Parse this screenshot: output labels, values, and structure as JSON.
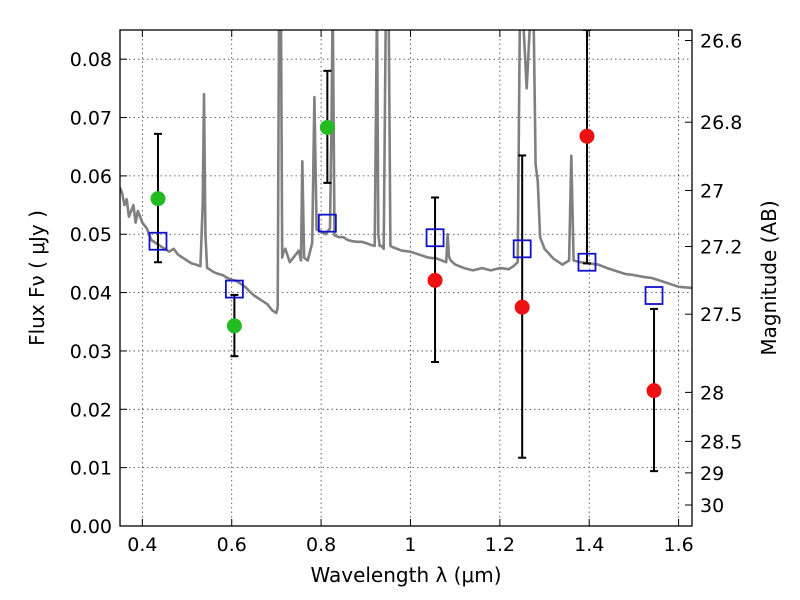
{
  "chart_data": {
    "type": "scatter",
    "title": "",
    "xlabel": "Wavelength  λ (μm)",
    "ylabel": "Flux  Fν  ( μJy )",
    "y2label": "Magnitude (AB)",
    "xlim": [
      0.35,
      1.63
    ],
    "ylim": [
      0.0,
      0.085
    ],
    "xticks": [
      0.4,
      0.6,
      0.8,
      1.0,
      1.2,
      1.4,
      1.6
    ],
    "xtick_labels": [
      "0.4",
      "0.6",
      "0.8",
      "1",
      "1.2",
      "1.4",
      "1.6"
    ],
    "yticks": [
      0.0,
      0.01,
      0.02,
      0.03,
      0.04,
      0.05,
      0.06,
      0.07,
      0.08
    ],
    "ytick_labels": [
      "0.00",
      "0.01",
      "0.02",
      "0.03",
      "0.04",
      "0.05",
      "0.06",
      "0.07",
      "0.08"
    ],
    "y2ticks": [
      {
        "label": "26.6",
        "flux": 0.0832
      },
      {
        "label": "26.8",
        "flux": 0.0692
      },
      {
        "label": "27",
        "flux": 0.0575
      },
      {
        "label": "27.2",
        "flux": 0.0479
      },
      {
        "label": "27.5",
        "flux": 0.0363
      },
      {
        "label": "28",
        "flux": 0.0229
      },
      {
        "label": "28.5",
        "flux": 0.0145
      },
      {
        "label": "29",
        "flux": 0.0091
      },
      {
        "label": "30",
        "flux": 0.0036
      }
    ],
    "grid": true,
    "series": [
      {
        "kind": "observed",
        "marker": "filled-circle",
        "points": [
          {
            "x": 0.435,
            "y": 0.0561,
            "color": "#22bb22",
            "err_low": 0.0452,
            "err_high": 0.0672
          },
          {
            "x": 0.606,
            "y": 0.0343,
            "color": "#22bb22",
            "err_low": 0.0291,
            "err_high": 0.0396
          },
          {
            "x": 0.814,
            "y": 0.0683,
            "color": "#22bb22",
            "err_low": 0.0588,
            "err_high": 0.078
          },
          {
            "x": 1.055,
            "y": 0.0421,
            "color": "#ee1111",
            "err_low": 0.0281,
            "err_high": 0.0563
          },
          {
            "x": 1.25,
            "y": 0.0375,
            "color": "#ee1111",
            "err_low": 0.0117,
            "err_high": 0.0635
          },
          {
            "x": 1.395,
            "y": 0.0668,
            "color": "#ee1111",
            "err_low": 0.045,
            "err_high": 0.085
          },
          {
            "x": 1.545,
            "y": 0.0232,
            "color": "#ee1111",
            "err_low": 0.0094,
            "err_high": 0.0372
          }
        ]
      },
      {
        "kind": "model-photometry",
        "marker": "open-square",
        "color": "#1111cc",
        "points": [
          {
            "x": 0.435,
            "y": 0.0488
          },
          {
            "x": 0.606,
            "y": 0.0406
          },
          {
            "x": 0.814,
            "y": 0.0519
          },
          {
            "x": 1.055,
            "y": 0.0494
          },
          {
            "x": 1.25,
            "y": 0.0475
          },
          {
            "x": 1.395,
            "y": 0.0452
          },
          {
            "x": 1.545,
            "y": 0.0395
          }
        ]
      },
      {
        "kind": "model-spectrum",
        "color": "#808080",
        "x": [
          0.35,
          0.355,
          0.36,
          0.365,
          0.37,
          0.375,
          0.38,
          0.385,
          0.39,
          0.4,
          0.41,
          0.42,
          0.43,
          0.44,
          0.45,
          0.46,
          0.47,
          0.48,
          0.49,
          0.5,
          0.51,
          0.52,
          0.53,
          0.535,
          0.538,
          0.541,
          0.545,
          0.55,
          0.56,
          0.57,
          0.58,
          0.59,
          0.6,
          0.61,
          0.62,
          0.63,
          0.64,
          0.65,
          0.66,
          0.67,
          0.68,
          0.69,
          0.7,
          0.703,
          0.706,
          0.71,
          0.713,
          0.716,
          0.72,
          0.73,
          0.74,
          0.75,
          0.755,
          0.758,
          0.762,
          0.77,
          0.78,
          0.785,
          0.79,
          0.8,
          0.81,
          0.82,
          0.823,
          0.826,
          0.83,
          0.84,
          0.85,
          0.86,
          0.87,
          0.88,
          0.89,
          0.9,
          0.91,
          0.92,
          0.925,
          0.928,
          0.931,
          0.935,
          0.94,
          0.945,
          0.948,
          0.951,
          0.955,
          0.96,
          0.97,
          0.98,
          1.0,
          1.02,
          1.04,
          1.06,
          1.07,
          1.08,
          1.083,
          1.086,
          1.09,
          1.1,
          1.12,
          1.14,
          1.16,
          1.18,
          1.2,
          1.22,
          1.23,
          1.24,
          1.245,
          1.25,
          1.26,
          1.27,
          1.275,
          1.28,
          1.285,
          1.29,
          1.3,
          1.32,
          1.34,
          1.355,
          1.36,
          1.365,
          1.38,
          1.4,
          1.42,
          1.44,
          1.46,
          1.48,
          1.5,
          1.52,
          1.54,
          1.56,
          1.58,
          1.6,
          1.63
        ],
        "y": [
          0.058,
          0.057,
          0.055,
          0.056,
          0.053,
          0.054,
          0.055,
          0.052,
          0.054,
          0.052,
          0.051,
          0.049,
          0.0485,
          0.048,
          0.0475,
          0.047,
          0.0475,
          0.0465,
          0.046,
          0.0455,
          0.045,
          0.0448,
          0.0445,
          0.055,
          0.074,
          0.05,
          0.0442,
          0.044,
          0.0435,
          0.0432,
          0.043,
          0.0425,
          0.0422,
          0.042,
          0.0415,
          0.041,
          0.0402,
          0.0395,
          0.039,
          0.0385,
          0.038,
          0.037,
          0.0365,
          0.0375,
          0.09,
          0.09,
          0.046,
          0.047,
          0.0475,
          0.0452,
          0.0462,
          0.0472,
          0.0455,
          0.0625,
          0.046,
          0.0455,
          0.0485,
          0.0735,
          0.0508,
          0.0505,
          0.05,
          0.051,
          0.0675,
          0.09,
          0.0498,
          0.0495,
          0.0495,
          0.049,
          0.0488,
          0.0487,
          0.0487,
          0.0485,
          0.0482,
          0.048,
          0.09,
          0.05,
          0.048,
          0.048,
          0.0475,
          0.09,
          0.09,
          0.09,
          0.048,
          0.0478,
          0.0475,
          0.0472,
          0.047,
          0.0465,
          0.046,
          0.0458,
          0.0455,
          0.0452,
          0.05,
          0.0462,
          0.0455,
          0.0448,
          0.0442,
          0.0438,
          0.0442,
          0.0438,
          0.0442,
          0.044,
          0.0445,
          0.0452,
          0.09,
          0.09,
          0.075,
          0.09,
          0.09,
          0.062,
          0.059,
          0.0495,
          0.0475,
          0.0458,
          0.0448,
          0.0455,
          0.0635,
          0.0455,
          0.0452,
          0.045,
          0.0448,
          0.0442,
          0.0437,
          0.0432,
          0.043,
          0.0427,
          0.0425,
          0.042,
          0.0415,
          0.041,
          0.0408
        ]
      }
    ]
  }
}
